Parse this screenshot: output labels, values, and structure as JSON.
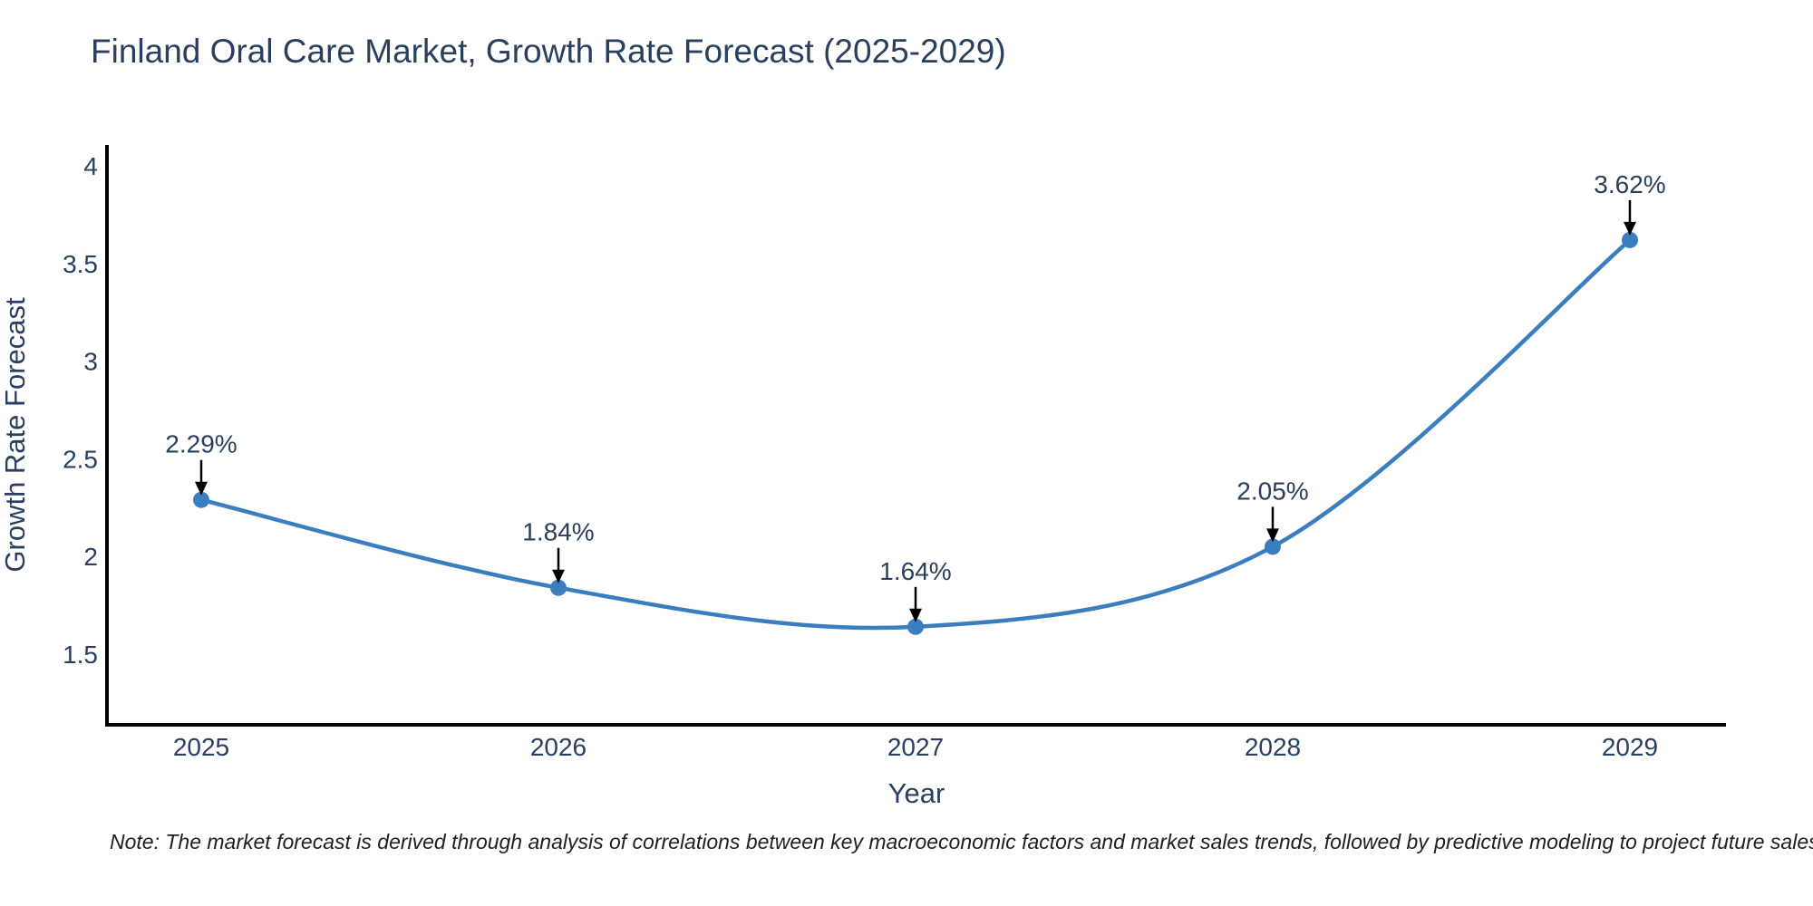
{
  "chart_data": {
    "type": "line",
    "title": "Finland Oral Care Market, Growth Rate Forecast (2025-2029)",
    "categories": [
      "2025",
      "2026",
      "2027",
      "2028",
      "2029"
    ],
    "series": [
      {
        "name": "Growth Rate Forecast",
        "values": [
          2.29,
          1.84,
          1.64,
          2.05,
          3.62
        ],
        "point_labels": [
          "2.29%",
          "1.84%",
          "1.64%",
          "2.05%",
          "3.62%"
        ]
      }
    ],
    "xlabel": "Year",
    "ylabel": "Growth Rate Forecast",
    "yticks": [
      4,
      3.5,
      3,
      2.5,
      2,
      1.5
    ],
    "ylim": [
      1.14,
      4.11
    ],
    "grid": false,
    "legend": "none",
    "line_style": "spline",
    "colors": {
      "line": "#3a7ebf",
      "marker": "#3a7ebf",
      "axis": "#000000",
      "text": "#2a3f5f",
      "annotation_arrow": "#000000"
    },
    "note": "Note: The market forecast is derived through analysis of correlations between key macroeconomic factors and market sales trends, followed by predictive modeling to project future sales"
  }
}
